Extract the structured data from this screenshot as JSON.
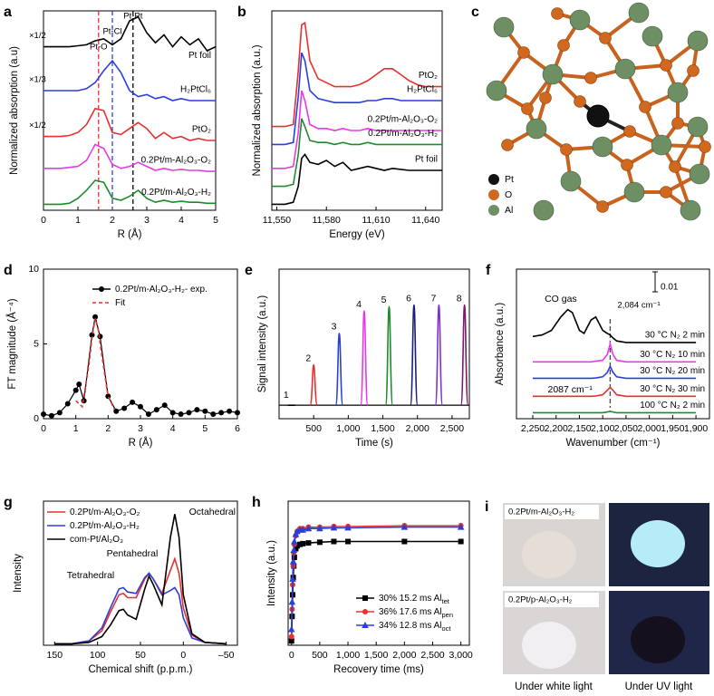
{
  "chart_data": [
    {
      "panel": "a",
      "type": "line",
      "xlabel": "R (Å)",
      "ylabel": "Normalized absorption (a.u)",
      "legend": "inline",
      "xlim": [
        0,
        5
      ],
      "ylim": [
        0,
        10
      ],
      "xticks": [
        0,
        1,
        2,
        3,
        4,
        5
      ],
      "x": [
        0,
        0.25,
        0.5,
        0.75,
        1,
        1.25,
        1.5,
        1.75,
        2,
        2.25,
        2.5,
        2.75,
        3,
        3.25,
        3.5,
        3.75,
        4,
        4.25,
        4.5,
        4.75,
        5
      ],
      "ref_lines": [
        {
          "x": 1.6,
          "color": "#e8302e",
          "label": "Pt-O"
        },
        {
          "x": 2.0,
          "color": "#2b3fd8",
          "label": "Pt-Cl"
        },
        {
          "x": 2.6,
          "color": "#000000",
          "label": "Pt-Pt"
        }
      ],
      "series": [
        {
          "name": "Pt foil",
          "color": "#000000",
          "scale": "×1/2",
          "values": [
            8.2,
            8.2,
            8.2,
            8.2,
            8.25,
            8.3,
            8.5,
            8.6,
            8.3,
            8.6,
            9.5,
            9.7,
            8.9,
            8.4,
            8.8,
            8.2,
            8.7,
            8.3,
            8.6,
            8.0,
            8.2
          ]
        },
        {
          "name": "H₂PtCl₆",
          "color": "#2b3fd8",
          "scale": "×1/3",
          "values": [
            6.0,
            6.0,
            6.0,
            6.0,
            6.0,
            6.1,
            6.4,
            7.0,
            7.5,
            6.9,
            6.0,
            5.7,
            5.8,
            5.6,
            5.7,
            5.5,
            5.6,
            5.5,
            5.5,
            5.5,
            5.5
          ]
        },
        {
          "name": "PtO₂",
          "color": "#e8302e",
          "scale": "×1/2",
          "values": [
            3.7,
            3.7,
            3.7,
            3.75,
            3.9,
            4.3,
            5.1,
            5.0,
            3.9,
            3.8,
            4.1,
            4.4,
            4.1,
            3.6,
            3.9,
            3.6,
            3.7,
            3.5,
            3.6,
            3.5,
            3.5
          ]
        },
        {
          "name": "0.2Pt/m-Al₂O₃-O₂",
          "color": "#e838e8",
          "values": [
            2.1,
            2.1,
            2.1,
            2.15,
            2.2,
            2.5,
            3.3,
            3.1,
            2.3,
            2.1,
            2.2,
            2.4,
            2.2,
            2.0,
            2.1,
            2.0,
            2.05,
            2.0,
            2.0,
            1.95,
            1.95
          ]
        },
        {
          "name": "0.2Pt/m-Al₂O₃-H₂",
          "color": "#1f8a2b",
          "values": [
            0.3,
            0.3,
            0.3,
            0.35,
            0.6,
            1.0,
            1.5,
            1.4,
            0.6,
            0.5,
            0.7,
            1.0,
            0.6,
            0.4,
            0.5,
            0.4,
            0.45,
            0.4,
            0.4,
            0.35,
            0.35
          ]
        }
      ]
    },
    {
      "panel": "b",
      "type": "line",
      "xlabel": "Energy (eV)",
      "ylabel": "Normalized absorption (a.u.)",
      "legend": "inline",
      "xlim": [
        11547,
        11650
      ],
      "ylim": [
        0,
        10
      ],
      "xticks": [
        {
          "value": 11550,
          "label": "11,550"
        },
        {
          "value": 11580,
          "label": "11,580"
        },
        {
          "value": 11610,
          "label": "11,610"
        },
        {
          "value": 11640,
          "label": "11,640"
        }
      ],
      "x": [
        11547,
        11555,
        11560,
        11563,
        11565,
        11567,
        11570,
        11575,
        11580,
        11585,
        11590,
        11595,
        11600,
        11605,
        11610,
        11615,
        11620,
        11625,
        11630,
        11635,
        11640,
        11645,
        11650
      ],
      "series": [
        {
          "name": "PtO₂",
          "color": "#e8302e",
          "values": [
            4.2,
            4.2,
            4.3,
            7.0,
            9.3,
            9.4,
            7.5,
            6.6,
            6.4,
            6.2,
            6.2,
            6.2,
            6.3,
            6.5,
            6.8,
            7.1,
            7.1,
            6.8,
            6.5,
            6.3,
            6.2,
            6.2,
            6.2
          ]
        },
        {
          "name": "H₂PtCl₆",
          "color": "#2b3fd8",
          "values": [
            3.3,
            3.3,
            3.4,
            5.7,
            7.9,
            7.5,
            6.0,
            5.6,
            5.5,
            5.4,
            5.4,
            5.4,
            5.4,
            5.5,
            5.5,
            5.6,
            5.6,
            5.5,
            5.5,
            5.5,
            5.5,
            5.5,
            5.5
          ]
        },
        {
          "name": "0.2Pt/m-Al₂O₃-O₂",
          "color": "#e838e8",
          "values": [
            2.1,
            2.1,
            2.2,
            3.9,
            6.0,
            5.5,
            4.3,
            4.1,
            4.1,
            4.0,
            4.1,
            4.0,
            4.0,
            4.1,
            4.0,
            4.0,
            4.0,
            4.0,
            4.0,
            4.0,
            4.0,
            4.0,
            4.0
          ]
        },
        {
          "name": "0.2Pt/m-Al₂O₃-H₂",
          "color": "#1f8a2b",
          "values": [
            1.2,
            1.2,
            1.3,
            2.8,
            4.6,
            4.2,
            3.5,
            3.4,
            3.4,
            3.3,
            3.4,
            3.3,
            3.3,
            3.4,
            3.3,
            3.3,
            3.3,
            3.3,
            3.3,
            3.3,
            3.3,
            3.3,
            3.3
          ]
        },
        {
          "name": "Pt foil",
          "color": "#000000",
          "values": [
            0.3,
            0.3,
            0.4,
            1.2,
            2.6,
            2.8,
            2.4,
            2.3,
            2.5,
            2.2,
            2.4,
            2.0,
            2.1,
            2.2,
            2.1,
            2.0,
            2.1,
            2.05,
            2.0,
            2.0,
            2.0,
            2.0,
            2.0
          ]
        }
      ]
    },
    {
      "panel": "d",
      "type": "line",
      "xlabel": "R (Å)",
      "ylabel": "FT magnitude (Å⁻⁴)",
      "legend": "upper right",
      "xlim": [
        0,
        6
      ],
      "ylim": [
        0,
        10
      ],
      "xticks": [
        0,
        1,
        2,
        3,
        4,
        5,
        6
      ],
      "yticks": [
        0,
        5,
        10
      ],
      "series": [
        {
          "name": "0.2Pt/m-Al₂O₃-H₂- exp.",
          "color": "#000000",
          "marker": "circle",
          "x": [
            0,
            0.25,
            0.5,
            0.75,
            1,
            1.1,
            1.25,
            1.5,
            1.6,
            1.75,
            2,
            2.25,
            2.5,
            2.75,
            3,
            3.25,
            3.5,
            3.75,
            4,
            4.25,
            4.5,
            4.75,
            5,
            5.25,
            5.5,
            5.75,
            6
          ],
          "values": [
            0.3,
            0.2,
            0.4,
            1.0,
            1.9,
            2.3,
            1.2,
            5.6,
            6.8,
            5.5,
            1.5,
            0.5,
            0.7,
            1.1,
            0.8,
            0.3,
            0.6,
            0.9,
            0.4,
            0.3,
            0.4,
            0.6,
            0.5,
            0.3,
            0.4,
            0.5,
            0.4
          ]
        },
        {
          "name": "Fit",
          "color": "#e8302e",
          "dash": true,
          "x": [
            1.0,
            1.2,
            1.4,
            1.5,
            1.6,
            1.7,
            1.8,
            2.0,
            2.2
          ],
          "values": [
            1.2,
            0.8,
            3.5,
            5.4,
            6.7,
            5.9,
            4.3,
            1.5,
            0.6
          ]
        }
      ]
    },
    {
      "panel": "e",
      "type": "peak",
      "xlabel": "Time (s)",
      "ylabel": "Signal intensity (a.u.)",
      "xlim": [
        0,
        2750
      ],
      "ylim": [
        0,
        10
      ],
      "xticks": [
        500,
        {
          "value": 1000,
          "label": "1,000"
        },
        {
          "value": 1500,
          "label": "1,500"
        },
        {
          "value": 2000,
          "label": "2,000"
        },
        {
          "value": 2500,
          "label": "2,500"
        }
      ],
      "baseline": 0.9,
      "x": [
        180,
        500,
        870,
        1230,
        1590,
        1950,
        2310,
        2680
      ],
      "values": [
        0.9,
        3.6,
        5.7,
        7.2,
        7.5,
        7.6,
        7.6,
        7.6
      ],
      "peak_labels": [
        1,
        2,
        3,
        4,
        5,
        6,
        7,
        8
      ],
      "colors": [
        "#000000",
        "#e8302e",
        "#2b3fd8",
        "#e838e8",
        "#1f8a2b",
        "#1a1f7a",
        "#7b2fd6",
        "#7a1a6a"
      ]
    },
    {
      "panel": "f",
      "type": "line",
      "xlabel": "Wavenumber (cm⁻¹)",
      "ylabel": "Absorbance (a.u.)",
      "legend": "inline",
      "xlim": [
        2285,
        1871
      ],
      "ylim": [
        0,
        10
      ],
      "xticks": [
        {
          "value": 2250,
          "label": "2,250"
        },
        {
          "value": 2200,
          "label": "2,200"
        },
        {
          "value": 2150,
          "label": "2,150"
        },
        {
          "value": 2100,
          "label": "2,100"
        },
        {
          "value": 2050,
          "label": "2,050"
        },
        {
          "value": 2000,
          "label": "2,000"
        },
        {
          "value": 1950,
          "label": "1,950"
        },
        {
          "value": 1900,
          "label": "1,900"
        }
      ],
      "x": [
        2250,
        2230,
        2210,
        2190,
        2175,
        2165,
        2150,
        2140,
        2125,
        2115,
        2100,
        2090,
        2084,
        2078,
        2070,
        2050,
        2000,
        1950,
        1900
      ],
      "ref_lines": [
        {
          "x": 2084,
          "color": "#444444",
          "label": "2,084 cm⁻¹"
        }
      ],
      "annotations": [
        "CO gas",
        "2087 cm⁻¹"
      ],
      "scale_bar": 0.01,
      "series": [
        {
          "name": "30 °C N₂ 2 min",
          "color": "#000000",
          "values": [
            5.5,
            5.6,
            5.9,
            6.8,
            7.3,
            7.1,
            5.9,
            5.7,
            6.6,
            6.8,
            5.9,
            5.7,
            5.6,
            5.4,
            5.2,
            5.1,
            5.1,
            5.1,
            5.1
          ]
        },
        {
          "name": "30 °C N₂ 10 min",
          "color": "#e838e8",
          "values": [
            3.8,
            3.8,
            3.8,
            3.8,
            3.8,
            3.8,
            3.8,
            3.8,
            3.8,
            3.85,
            3.9,
            4.3,
            5.0,
            4.3,
            3.9,
            3.8,
            3.8,
            3.8,
            3.8
          ]
        },
        {
          "name": "30 °C N₂ 20 min",
          "color": "#2b3fd8",
          "values": [
            2.7,
            2.7,
            2.7,
            2.7,
            2.7,
            2.7,
            2.7,
            2.7,
            2.7,
            2.72,
            2.8,
            3.1,
            3.5,
            3.1,
            2.8,
            2.7,
            2.7,
            2.7,
            2.7
          ]
        },
        {
          "name": "30 °C N₂ 30 min",
          "color": "#e8302e",
          "values": [
            1.5,
            1.5,
            1.5,
            1.5,
            1.5,
            1.5,
            1.5,
            1.5,
            1.5,
            1.52,
            1.6,
            1.9,
            2.1,
            1.9,
            1.6,
            1.5,
            1.5,
            1.5,
            1.5
          ]
        },
        {
          "name": "100 °C N₂ 2 min",
          "color": "#1f8a2b",
          "values": [
            0.4,
            0.4,
            0.4,
            0.4,
            0.4,
            0.4,
            0.4,
            0.4,
            0.4,
            0.4,
            0.4,
            0.45,
            0.5,
            0.45,
            0.4,
            0.4,
            0.4,
            0.4,
            0.4
          ]
        }
      ]
    },
    {
      "panel": "g",
      "type": "line",
      "xlabel": "Chemical shift (p.p.m.)",
      "ylabel": "Intensity",
      "legend": "upper left",
      "xlim": [
        163,
        -63
      ],
      "ylim": [
        0,
        10
      ],
      "xticks": [
        150,
        100,
        50,
        0,
        {
          "value": -50,
          "label": "–50"
        }
      ],
      "x": [
        150,
        130,
        110,
        95,
        85,
        75,
        70,
        65,
        55,
        45,
        40,
        35,
        25,
        15,
        10,
        5,
        0,
        -10,
        -25,
        -50
      ],
      "annotations": [
        "Octahedral",
        "Pentahedral",
        "Tetrahedral"
      ],
      "series": [
        {
          "name": "0.2Pt/m-Al₂O₃-O₂",
          "color": "#e8302e",
          "values": [
            0.1,
            0.1,
            0.3,
            1.0,
            2.3,
            3.5,
            3.6,
            3.3,
            3.3,
            4.6,
            5.0,
            4.6,
            3.6,
            5.2,
            6.0,
            5.0,
            2.6,
            0.7,
            0.2,
            0.1
          ]
        },
        {
          "name": "0.2Pt/m-Al₂O₃-H₂",
          "color": "#2b3fd8",
          "values": [
            0.1,
            0.1,
            0.3,
            1.2,
            2.6,
            3.9,
            4.0,
            3.7,
            3.6,
            4.7,
            5.0,
            4.6,
            3.5,
            3.8,
            4.0,
            3.5,
            1.9,
            0.5,
            0.2,
            0.1
          ]
        },
        {
          "name": "com-Pt/Al₂O₃",
          "color": "#000000",
          "values": [
            0.1,
            0.1,
            0.2,
            0.6,
            1.4,
            2.4,
            2.5,
            2.1,
            1.8,
            3.9,
            4.8,
            4.2,
            2.8,
            7.5,
            9.1,
            7.5,
            3.5,
            0.8,
            0.2,
            0.1
          ]
        }
      ]
    },
    {
      "panel": "h",
      "type": "line",
      "xlabel": "Recovery time (ms)",
      "ylabel": "Intensity (a.u.)",
      "legend": "lower right",
      "xlim": [
        -60,
        3150
      ],
      "ylim": [
        0,
        10
      ],
      "xticks": [
        0,
        500,
        {
          "value": 1000,
          "label": "1,000"
        },
        {
          "value": 1500,
          "label": "1,500"
        },
        {
          "value": 2000,
          "label": "2,000"
        },
        {
          "value": 2500,
          "label": "2,500"
        },
        {
          "value": 3000,
          "label": "3,000"
        }
      ],
      "x": [
        0,
        10,
        20,
        30,
        40,
        50,
        75,
        100,
        150,
        200,
        300,
        500,
        750,
        1000,
        2000,
        3000
      ],
      "series": [
        {
          "name": "30% 15.2 ms Al",
          "name_sub": "tet",
          "color": "#000000",
          "marker": "square",
          "values": [
            0.3,
            2.0,
            3.5,
            4.7,
            5.5,
            6.1,
            6.7,
            6.9,
            7.0,
            7.05,
            7.1,
            7.15,
            7.2,
            7.2,
            7.2,
            7.2
          ]
        },
        {
          "name": "36% 17.6 ms Al",
          "name_sub": "pen",
          "color": "#e8302e",
          "marker": "circle",
          "values": [
            0.6,
            2.5,
            4.2,
            5.5,
            6.4,
            7.0,
            7.6,
            7.9,
            8.1,
            8.1,
            8.2,
            8.2,
            8.25,
            8.25,
            8.3,
            8.3
          ]
        },
        {
          "name": "34% 12.8 ms Al",
          "name_sub": "oct",
          "color": "#2b3fd8",
          "marker": "triangle",
          "values": [
            1.1,
            3.0,
            4.6,
            5.8,
            6.6,
            7.2,
            7.7,
            7.9,
            8.0,
            8.0,
            8.1,
            8.1,
            8.15,
            8.15,
            8.2,
            8.2
          ]
        }
      ]
    }
  ],
  "structure": {
    "panel": "c",
    "legend": [
      "Pt",
      "O",
      "Al"
    ]
  },
  "photos": {
    "panel": "i",
    "labels": [
      "0.2Pt/m-Al₂O₃-H₂",
      "0.2Pt/p-Al₂O₃-H₂"
    ],
    "captions": [
      "Under white light",
      "Under UV light"
    ]
  }
}
